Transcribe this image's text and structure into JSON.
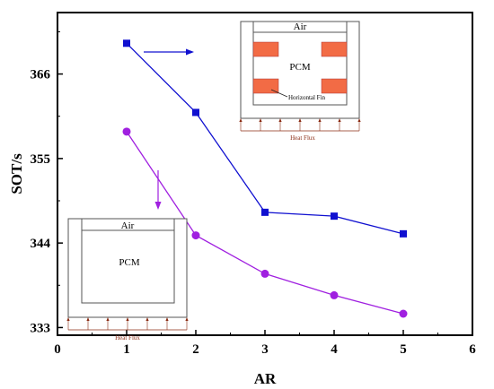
{
  "chart_data": {
    "type": "line",
    "xlabel": "AR",
    "ylabel": "SOT/s",
    "xlim": [
      0,
      6
    ],
    "ylim": [
      332,
      374
    ],
    "x_ticks": [
      "0",
      "1",
      "2",
      "3",
      "4",
      "5",
      "6"
    ],
    "y_ticks": [
      "333",
      "344",
      "355",
      "366"
    ],
    "x": [
      1,
      2,
      3,
      4,
      5
    ],
    "series": [
      {
        "marker": "square",
        "color": "#1010d0",
        "values": [
          370.0,
          361.0,
          348.0,
          347.5,
          345.2
        ]
      },
      {
        "marker": "circle",
        "color": "#a020e0",
        "values": [
          358.5,
          345.0,
          340.0,
          337.2,
          334.8
        ]
      }
    ],
    "insets": {
      "fin": {
        "air_label": "Air",
        "pcm_label": "PCM",
        "fin_label": "Horizontal Fin",
        "flux_label": "Heat Flux",
        "fin_color": "#f26b45"
      },
      "nofin": {
        "air_label": "Air",
        "pcm_label": "PCM",
        "flux_label": "Heat Flux"
      }
    }
  }
}
